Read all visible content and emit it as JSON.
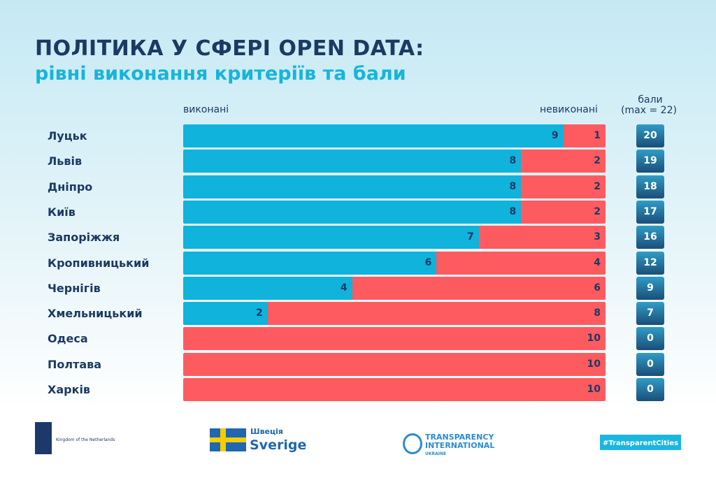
{
  "title": "ПОЛІТИКА У СФЕРІ OPEN DATA:",
  "subtitle": "рівні виконання критеріїв та бали",
  "chart_data": {
    "type": "bar",
    "stacked": true,
    "orientation": "horizontal",
    "categories": [
      "Луцьк",
      "Львів",
      "Дніпро",
      "Київ",
      "Запоріжжя",
      "Кропивницький",
      "Чернігів",
      "Хмельницький",
      "Одеса",
      "Полтава",
      "Харків"
    ],
    "series": [
      {
        "name": "виконані",
        "color": "#0fb3dc",
        "values": [
          9,
          8,
          8,
          8,
          7,
          6,
          4,
          2,
          0,
          0,
          0
        ]
      },
      {
        "name": "невиконані",
        "color": "#fe5b60",
        "values": [
          1,
          2,
          2,
          2,
          3,
          4,
          6,
          8,
          10,
          10,
          10
        ]
      }
    ],
    "scores_header_line1": "бали",
    "scores_header_line2": "(max = 22)",
    "scores": [
      20,
      19,
      18,
      17,
      16,
      12,
      9,
      7,
      0,
      0,
      0
    ],
    "xlim": [
      0,
      10
    ]
  },
  "logos": {
    "netherlands": "Kingdom of the Netherlands",
    "sweden_top": "Швеція",
    "sweden_bottom": "Sverige",
    "ti_1": "TRANSPARENCY",
    "ti_2": "INTERNATIONAL",
    "ti_3": "UKRAINE",
    "cities": "#TransparentCities"
  }
}
